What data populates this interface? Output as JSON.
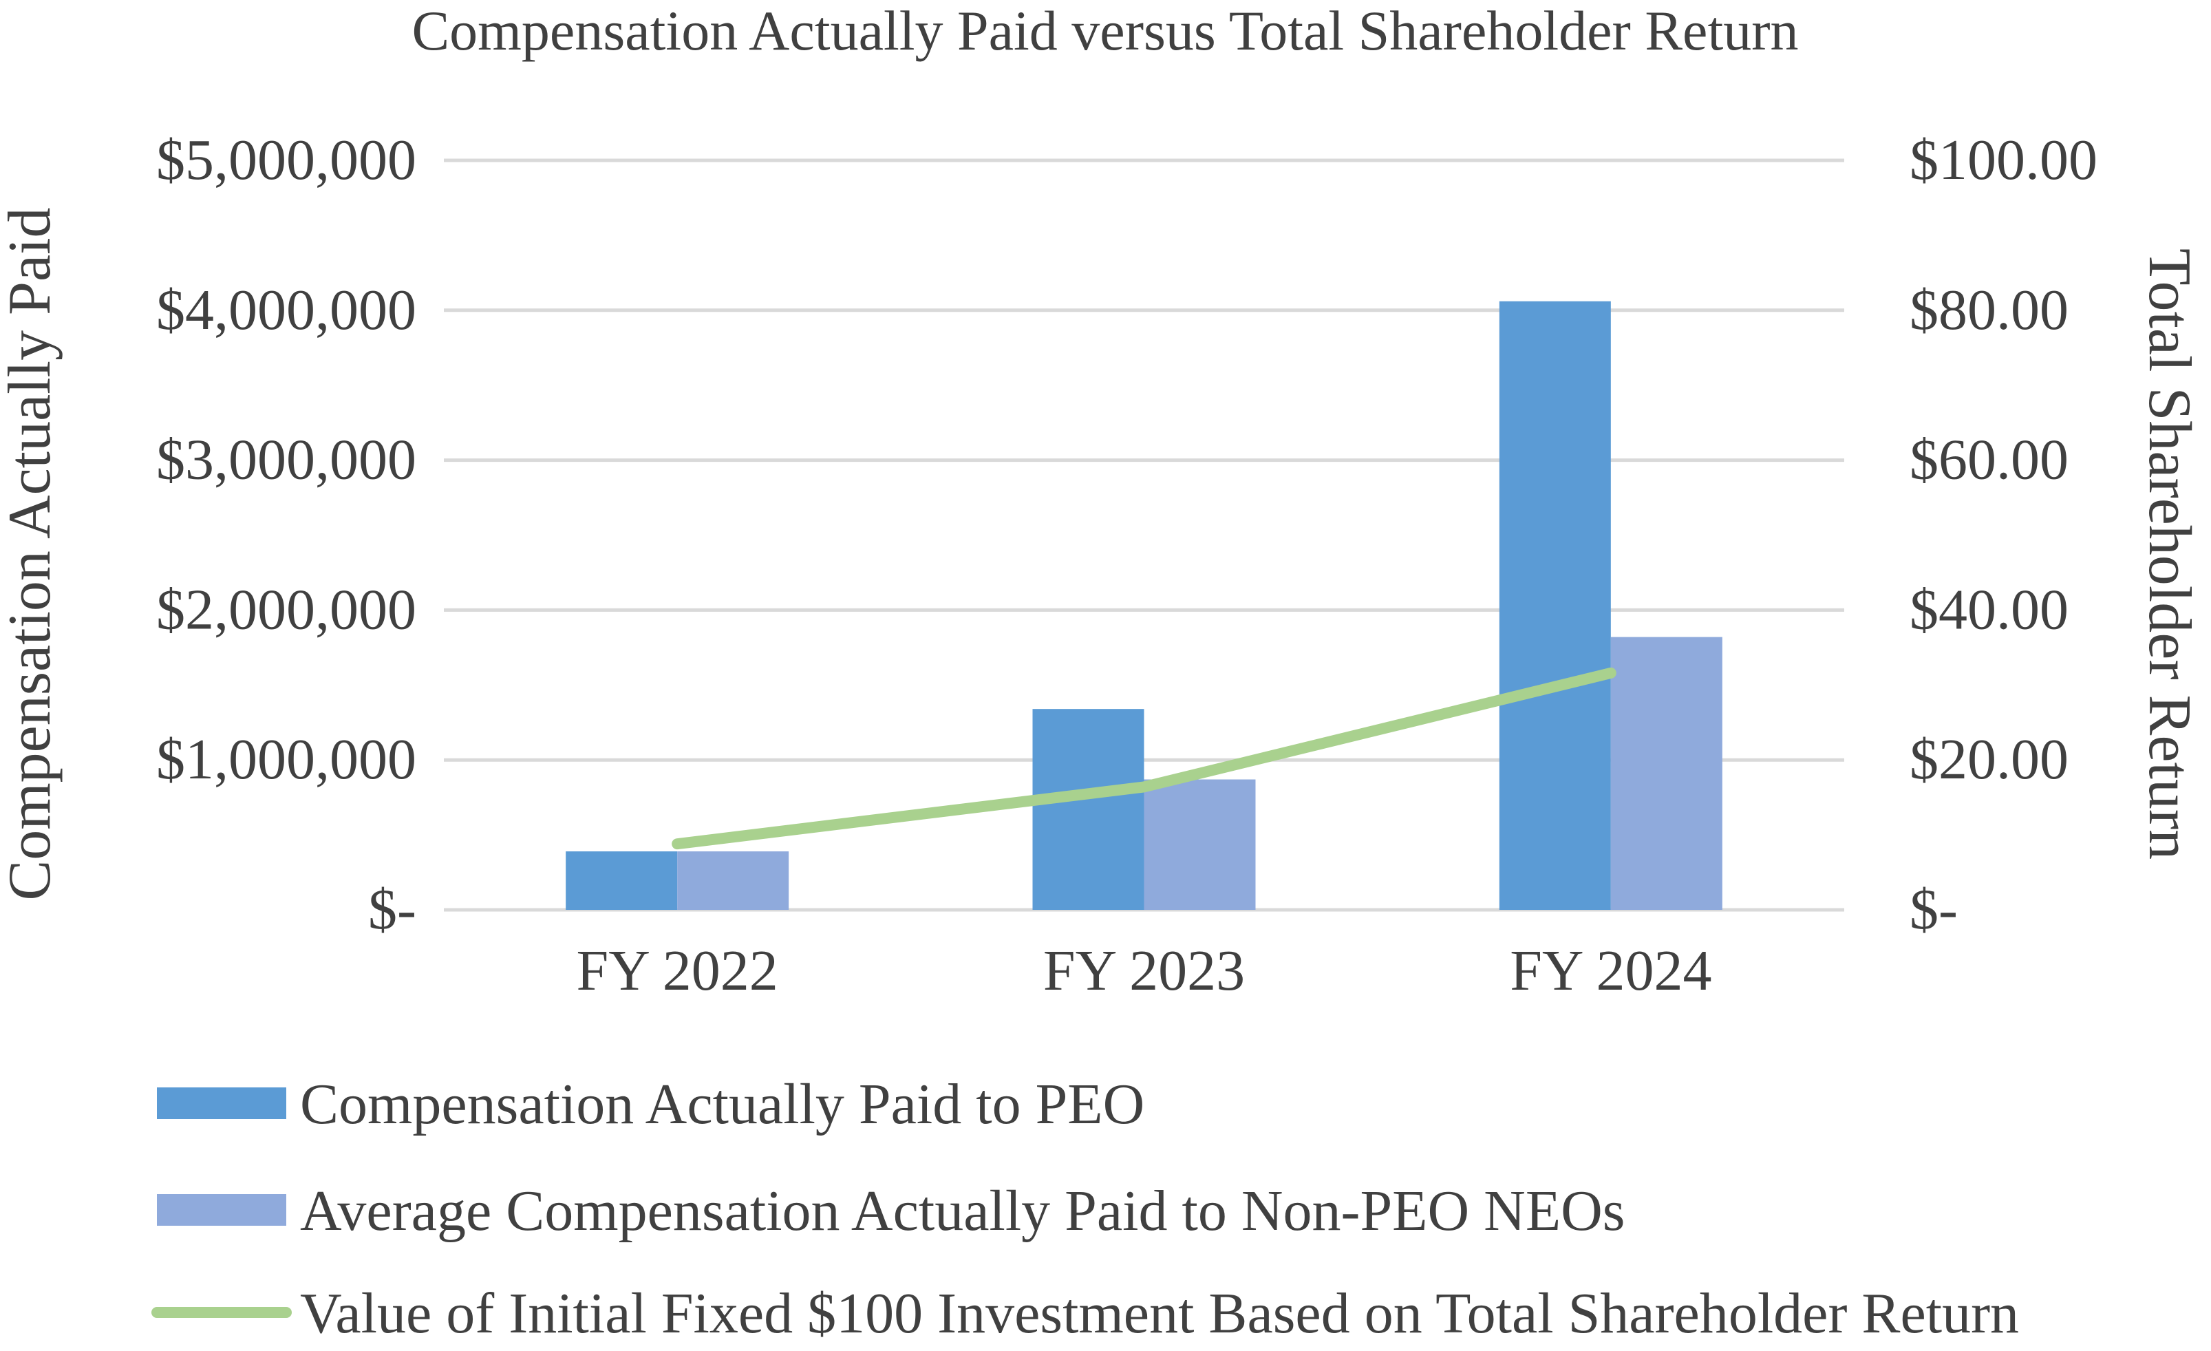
{
  "chart_data": {
    "type": "bar",
    "title": "Compensation Actually Paid versus Total Shareholder Return",
    "categories": [
      "FY 2022",
      "FY 2023",
      "FY 2024"
    ],
    "xlabel": "",
    "ylabel": "Compensation Actually Paid",
    "y2label": "Total Shareholder Return",
    "ylim": [
      0,
      5000000
    ],
    "y2lim": [
      0,
      100
    ],
    "yticks": [
      {
        "value": 0,
        "label": "$-"
      },
      {
        "value": 1000000,
        "label": "$1,000,000"
      },
      {
        "value": 2000000,
        "label": "$2,000,000"
      },
      {
        "value": 3000000,
        "label": "$3,000,000"
      },
      {
        "value": 4000000,
        "label": "$4,000,000"
      },
      {
        "value": 5000000,
        "label": "$5,000,000"
      }
    ],
    "y2ticks": [
      {
        "value": 0,
        "label": "$-"
      },
      {
        "value": 20,
        "label": "$20.00"
      },
      {
        "value": 40,
        "label": "$40.00"
      },
      {
        "value": 60,
        "label": "$60.00"
      },
      {
        "value": 80,
        "label": "$80.00"
      },
      {
        "value": 100,
        "label": "$100.00"
      }
    ],
    "grid": true,
    "legend_position": "bottom",
    "series": [
      {
        "name": "Compensation Actually Paid to PEO",
        "type": "bar",
        "axis": "left",
        "color": "#5b9bd5",
        "values": [
          390000,
          1340000,
          4060000
        ]
      },
      {
        "name": "Average Compensation Actually Paid to Non-PEO NEOs",
        "type": "bar",
        "axis": "left",
        "color": "#8faadc",
        "values": [
          390000,
          870000,
          1820000
        ]
      },
      {
        "name": "Value of Initial Fixed $100 Investment Based on Total Shareholder Return",
        "type": "line",
        "axis": "right",
        "color": "#a9d18e",
        "values": [
          8.8,
          16.4,
          31.6
        ]
      }
    ]
  }
}
